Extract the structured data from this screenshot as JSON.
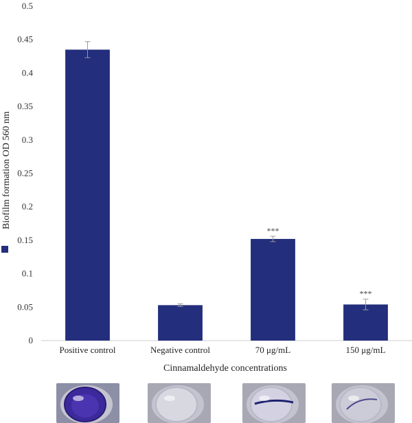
{
  "chart_data": {
    "type": "bar",
    "categories": [
      "Positive control",
      "Negative control",
      "70 μg/mL",
      "150 μg/mL"
    ],
    "values": [
      0.435,
      0.053,
      0.152,
      0.054
    ],
    "error": [
      0.012,
      0.002,
      0.004,
      0.008
    ],
    "annotations": [
      "",
      "",
      "***",
      "***"
    ],
    "ylabel": "Biofilm formation OD 560 nm",
    "xlabel": "Cinnamaldehyde concentrations",
    "ylim": [
      0,
      0.5
    ],
    "yticks": [
      "0",
      "0.05",
      "0.1",
      "0.15",
      "0.2",
      "0.25",
      "0.3",
      "0.35",
      "0.4",
      "0.45",
      "0.5"
    ],
    "grid": false,
    "legend_placement": "left",
    "bar_color": "#232e7c",
    "error_color": "#9a9a9a"
  },
  "thumbnails": [
    {
      "category": "Positive control",
      "stain": "strong"
    },
    {
      "category": "Negative control",
      "stain": "none"
    },
    {
      "category": "70 μg/mL",
      "stain": "light"
    },
    {
      "category": "150 μg/mL",
      "stain": "faint"
    }
  ]
}
